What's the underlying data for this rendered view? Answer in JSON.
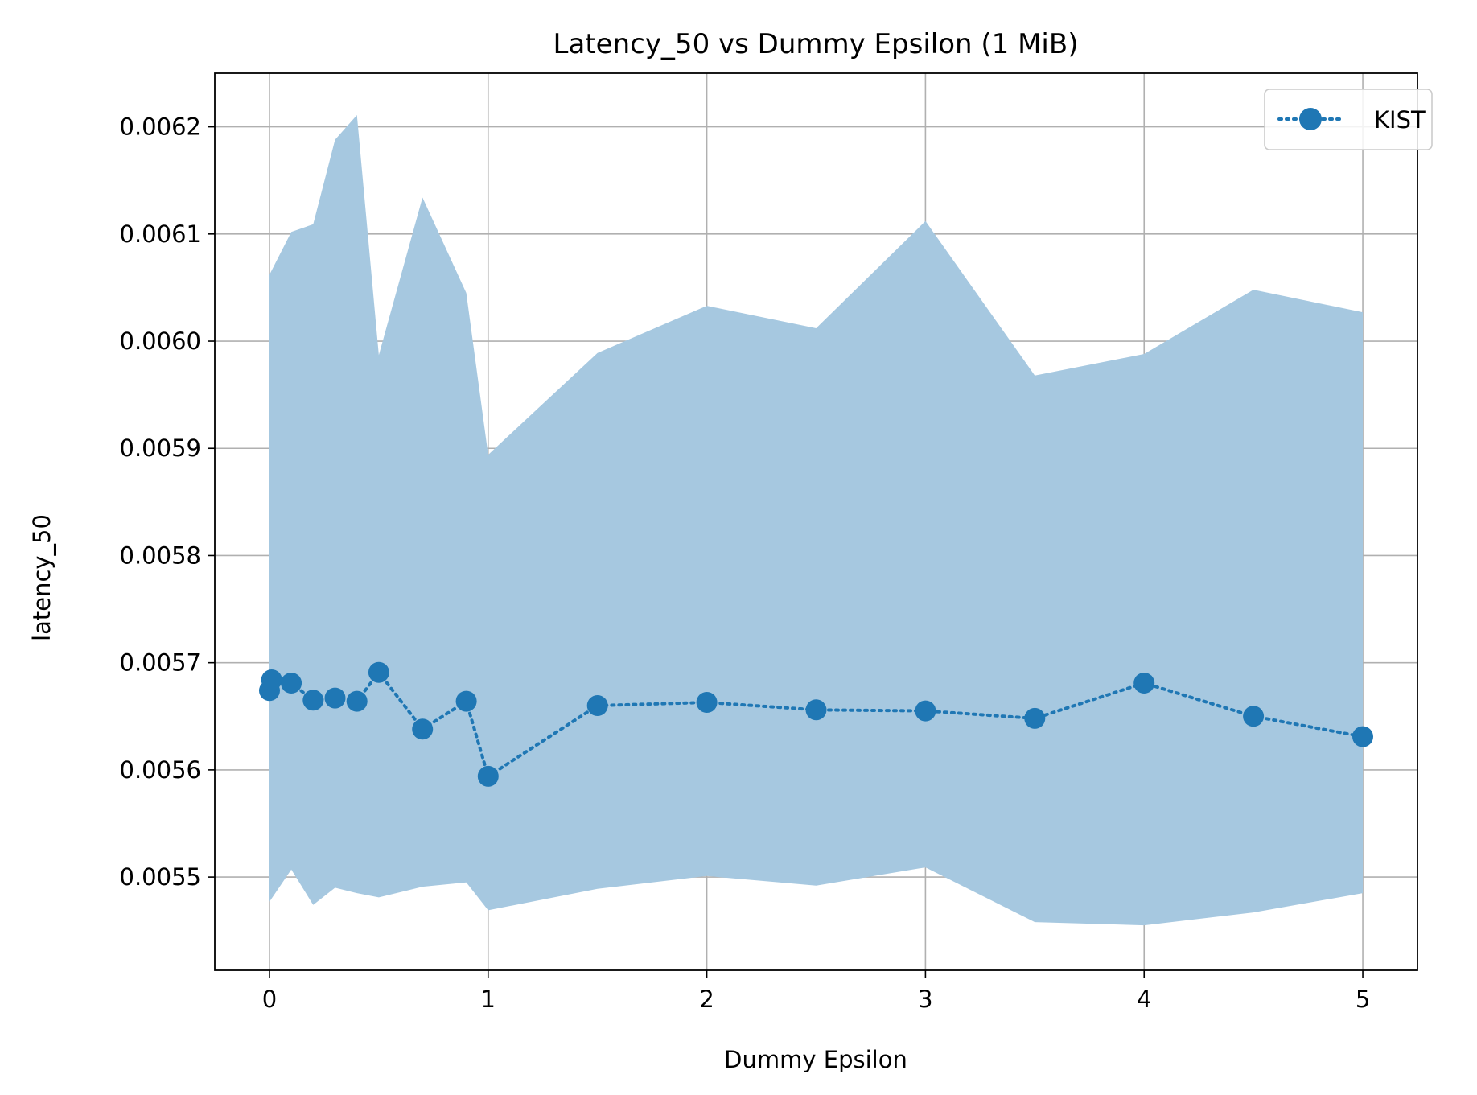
{
  "chart_data": {
    "type": "line",
    "title": "Latency_50 vs Dummy Epsilon (1 MiB)",
    "xlabel": "Dummy Epsilon",
    "ylabel": "latency_50",
    "xlim": [
      -0.25,
      5.25
    ],
    "ylim": [
      0.005413,
      0.00625
    ],
    "x_ticks": [
      0,
      1,
      2,
      3,
      4,
      5
    ],
    "x_tick_labels": [
      "0",
      "1",
      "2",
      "3",
      "4",
      "5"
    ],
    "y_ticks": [
      0.0055,
      0.0056,
      0.0057,
      0.0058,
      0.0059,
      0.006,
      0.0061,
      0.0062
    ],
    "y_tick_labels": [
      "0.0055",
      "0.0056",
      "0.0057",
      "0.0058",
      "0.0059",
      "0.0060",
      "0.0061",
      "0.0062"
    ],
    "grid": true,
    "legend_position": "top-right",
    "series": [
      {
        "name": "KIST",
        "color": "#1f77b4",
        "band_color": "#a6c8e0",
        "line_style": "dotted",
        "marker": "circle",
        "x": [
          0.0,
          0.01,
          0.1,
          0.2,
          0.3,
          0.4,
          0.5,
          0.7,
          0.9,
          1.0,
          1.5,
          2.0,
          2.5,
          3.0,
          3.5,
          4.0,
          4.5,
          5.0
        ],
        "y": [
          0.005674,
          0.005684,
          0.005681,
          0.005665,
          0.005667,
          0.005664,
          0.005691,
          0.005638,
          0.005664,
          0.005594,
          0.00566,
          0.005663,
          0.005656,
          0.005655,
          0.005648,
          0.005681,
          0.00565,
          0.005631
        ],
        "upper": [
          0.006062,
          0.006066,
          0.006102,
          0.006109,
          0.006188,
          0.006211,
          0.005987,
          0.006134,
          0.006045,
          0.005894,
          0.005989,
          0.006033,
          0.006012,
          0.006112,
          0.005968,
          0.005988,
          0.006048,
          0.006027
        ],
        "lower": [
          0.005477,
          0.00548,
          0.005507,
          0.005474,
          0.00549,
          0.005485,
          0.005481,
          0.005491,
          0.005495,
          0.005469,
          0.005489,
          0.005501,
          0.005492,
          0.005509,
          0.005458,
          0.005455,
          0.005467,
          0.005485
        ]
      }
    ]
  }
}
